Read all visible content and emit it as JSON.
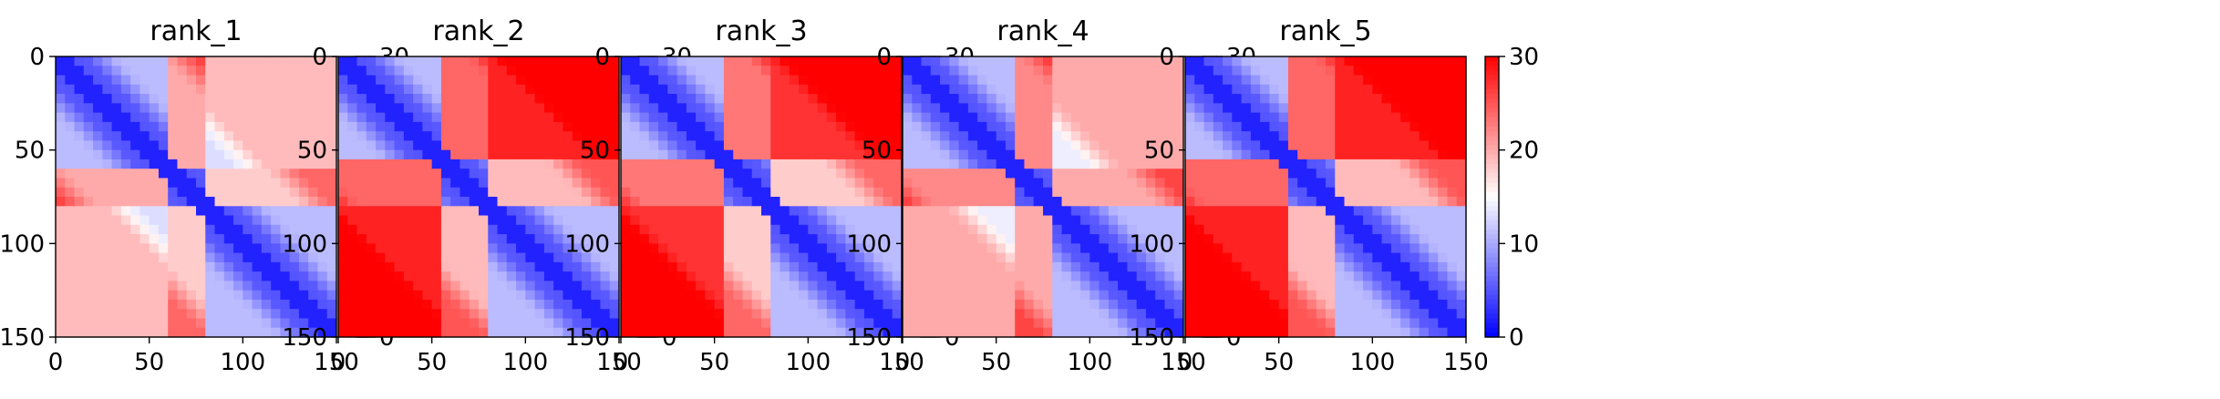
{
  "colors": {
    "low": "#0000ff",
    "mid": "#ffffff",
    "high": "#ff0000",
    "axis": "#000000"
  },
  "chart_data": [
    {
      "type": "heatmap",
      "title": "rank_1",
      "xlim": [
        0,
        150
      ],
      "ylim": [
        150,
        0
      ],
      "xticks": [
        "0",
        "50",
        "100",
        "150"
      ],
      "yticks": [
        "0",
        "50",
        "100",
        "150"
      ],
      "colorbar": {
        "colormap": "bwr",
        "range": [
          0,
          30
        ],
        "ticks": [
          "0",
          "10",
          "20",
          "30"
        ]
      },
      "domain_boundaries": [
        58,
        80
      ],
      "block_values": [
        [
          5,
          20,
          13
        ],
        [
          20,
          5,
          18
        ],
        [
          13,
          18,
          5
        ]
      ]
    },
    {
      "type": "heatmap",
      "title": "rank_2",
      "xlim": [
        0,
        150
      ],
      "ylim": [
        150,
        0
      ],
      "xticks": [
        "0",
        "50",
        "100",
        "150"
      ],
      "yticks": [
        "0",
        "50",
        "100",
        "150"
      ],
      "colorbar": {
        "colormap": "bwr",
        "range": [
          0,
          30
        ],
        "ticks": [
          "0",
          "10",
          "20",
          "30"
        ]
      },
      "domain_boundaries": [
        55,
        80
      ],
      "block_values": [
        [
          5,
          24,
          28
        ],
        [
          24,
          5,
          19
        ],
        [
          28,
          19,
          5
        ]
      ]
    },
    {
      "type": "heatmap",
      "title": "rank_3",
      "xlim": [
        0,
        150
      ],
      "ylim": [
        150,
        0
      ],
      "xticks": [
        "0",
        "50",
        "100",
        "150"
      ],
      "yticks": [
        "0",
        "50",
        "100",
        "150"
      ],
      "colorbar": {
        "colormap": "bwr",
        "range": [
          0,
          30
        ],
        "ticks": [
          "0",
          "10",
          "20",
          "30"
        ]
      },
      "domain_boundaries": [
        55,
        80
      ],
      "block_values": [
        [
          5,
          23,
          27
        ],
        [
          23,
          5,
          18
        ],
        [
          27,
          18,
          5
        ]
      ]
    },
    {
      "type": "heatmap",
      "title": "rank_4",
      "xlim": [
        0,
        150
      ],
      "ylim": [
        150,
        0
      ],
      "xticks": [
        "0",
        "50",
        "100",
        "150"
      ],
      "yticks": [
        "0",
        "50",
        "100",
        "150"
      ],
      "colorbar": {
        "colormap": "bwr",
        "range": [
          0,
          30
        ],
        "ticks": [
          "0",
          "10",
          "20",
          "30"
        ]
      },
      "domain_boundaries": [
        60,
        80
      ],
      "block_values": [
        [
          5,
          22,
          14
        ],
        [
          22,
          5,
          20
        ],
        [
          14,
          20,
          5
        ]
      ]
    },
    {
      "type": "heatmap",
      "title": "rank_5",
      "xlim": [
        0,
        150
      ],
      "ylim": [
        150,
        0
      ],
      "xticks": [
        "0",
        "50",
        "100",
        "150"
      ],
      "yticks": [
        "0",
        "50",
        "100",
        "150"
      ],
      "colorbar": {
        "colormap": "bwr",
        "range": [
          0,
          30
        ],
        "ticks": [
          "0",
          "10",
          "20",
          "30"
        ]
      },
      "domain_boundaries": [
        55,
        80
      ],
      "block_values": [
        [
          5,
          24,
          28
        ],
        [
          24,
          5,
          19
        ],
        [
          28,
          19,
          5
        ]
      ]
    }
  ]
}
